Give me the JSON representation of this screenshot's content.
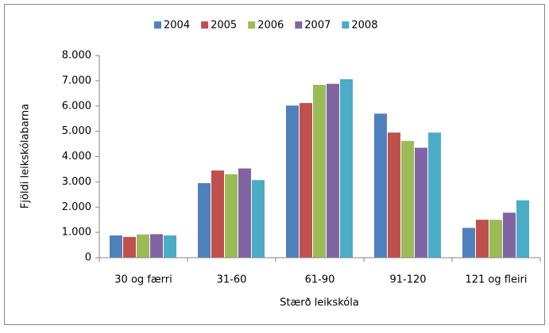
{
  "chart_data": {
    "type": "bar",
    "x_label": "Stærð leikskóla",
    "y_label": "Fjöldi leikskólabarna",
    "categories": [
      "30 og færri",
      "31-60",
      "61-90",
      "91-120",
      "121 og fleiri"
    ],
    "series": [
      {
        "name": "2004",
        "color": "#4f81bd",
        "values": [
          880,
          2950,
          6020,
          5700,
          1180
        ]
      },
      {
        "name": "2005",
        "color": "#c0504d",
        "values": [
          820,
          3450,
          6120,
          4950,
          1500
        ]
      },
      {
        "name": "2006",
        "color": "#9bbb59",
        "values": [
          920,
          3300,
          6840,
          4620,
          1500
        ]
      },
      {
        "name": "2007",
        "color": "#8064a2",
        "values": [
          930,
          3530,
          6880,
          4350,
          1780
        ]
      },
      {
        "name": "2008",
        "color": "#4bacc6",
        "values": [
          880,
          3070,
          7060,
          4950,
          2270
        ]
      }
    ],
    "ylim": [
      0,
      8000
    ],
    "yticks": [
      0,
      {
        "value": 1000,
        "label": "1.000"
      },
      {
        "value": 2000,
        "label": "2.000"
      },
      {
        "value": 3000,
        "label": "3.000"
      },
      {
        "value": 4000,
        "label": "4.000"
      },
      {
        "value": 5000,
        "label": "5.000"
      },
      {
        "value": 6000,
        "label": "6.000"
      },
      {
        "value": 7000,
        "label": "7.000"
      },
      {
        "value": 8000,
        "label": "8.000"
      }
    ],
    "legend": "top"
  }
}
